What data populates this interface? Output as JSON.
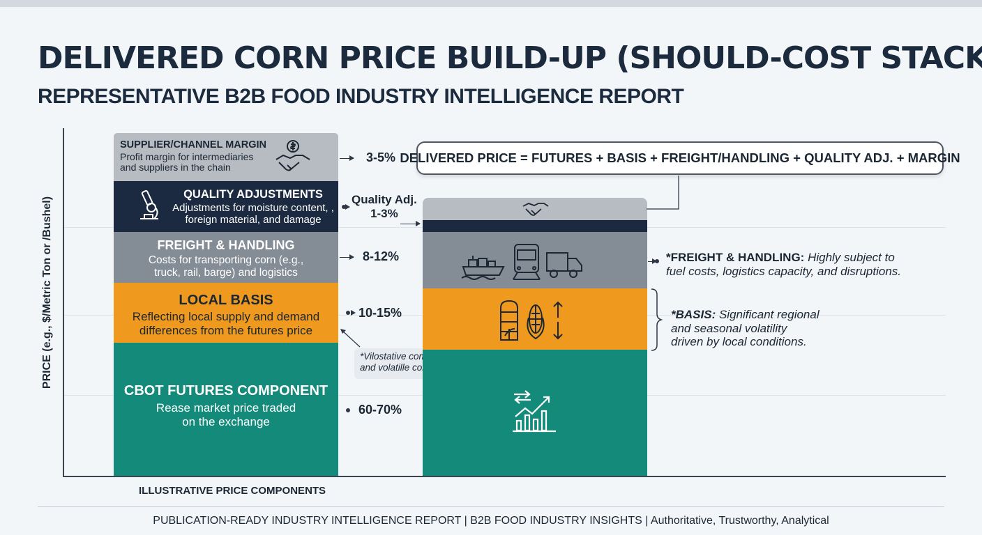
{
  "title": "DELIVERED CORN PRICE BUILD-UP (SHOULD-COST STACK)",
  "subtitle_pre": "REPRESENTATIVE B2B FOOD ",
  "subtitle_bold": "INDUSTRY INTELLI",
  "subtitle_post": "GENCE REPORT",
  "colors": {
    "futures": "#138a7a",
    "basis": "#ef9a1f",
    "freight": "#848c96",
    "quality": "#1b2a40",
    "margin": "#b7bcc3"
  },
  "chart_data": {
    "type": "bar",
    "stacked": true,
    "title": "DELIVERED CORN PRICE BUILD-UP (SHOULD-COST STACK)",
    "ylabel": "PRICE (e.g., $/Metric Ton or /Bushel)",
    "xlabel": "ILLUSTRATIVE PRICE COMPONENTS",
    "grid": true,
    "left_stack": {
      "segments": [
        {
          "title": "CBOT FUTURES COMPONENT",
          "desc": "Rease market price traded on the exchange",
          "share": "60-70%",
          "min": 60,
          "max": 70
        },
        {
          "title": "LOCAL BASIS",
          "desc": "Reflecting local supply and demand differences from the futures price",
          "share": "10-15%",
          "min": 10,
          "max": 15
        },
        {
          "title": "FREIGHT & HANDLING",
          "desc": "Costs for transporting corn (e.g., truck, rail, barge) and logistics",
          "share": "8-12%",
          "min": 8,
          "max": 12
        },
        {
          "title": "QUALITY ADJUSTMENTS",
          "desc": "Adjustments for moisture content, , foreign material, and damage",
          "share": "Quality Adj. 1-3%",
          "min": 1,
          "max": 3
        },
        {
          "title": "SUPPLIER/CHANNEL MARGIN",
          "desc": "Profit margin for intermediaries and suppliers in the chain",
          "share": "3-5%",
          "min": 3,
          "max": 5
        }
      ]
    },
    "right_stack": {
      "segments": [
        {
          "name": "CBOT FUTURES COMPONENT",
          "icon": "market-trend-chart-icon"
        },
        {
          "name": "LOCAL BASIS",
          "icon": "grain-silo-corn-updown-icon"
        },
        {
          "name": "FREIGHT & HANDLING",
          "icon": "ship-train-truck-icon"
        },
        {
          "name": "QUALITY ADJUSTMENTS",
          "icon": ""
        },
        {
          "name": "SUPPLIER/CHANNEL MARGIN",
          "icon": "handshake-icon"
        }
      ]
    }
  },
  "labels": {
    "margin_pct": "3-5%",
    "quality_pct_line1": "Quality Adj.",
    "quality_pct_line2": "1-3%",
    "freight_pct": "8-12%",
    "basis_pct": "10-15%",
    "futures_pct": "60-70%"
  },
  "formula": "DELIVERED PRICE = FUTURES + BASIS + FREIGHT/HANDLING + QUALITY ADJ. + MARGIN",
  "notes": {
    "freight_bold": "*FREIGHT & HANDLING:",
    "freight_text1": "Highly subject to",
    "freight_text2": "fuel costs, logistics capacity, and disruptions.",
    "basis_bold": "*BASIS:",
    "basis_text1": "Significant regional",
    "basis_text2": "and seasonal volatility",
    "basis_text3": "driven by local conditions.",
    "volatile_line1": "*Vilostative components",
    "volatile_line2": "and volatille components"
  },
  "footer": "PUBLICATION-READY INDUSTRY INTELLIGENCE REPORT  |  B2B FOOD INDUSTRY INSIGHTS  |  Authoritative, Trustworthy, Analytical"
}
